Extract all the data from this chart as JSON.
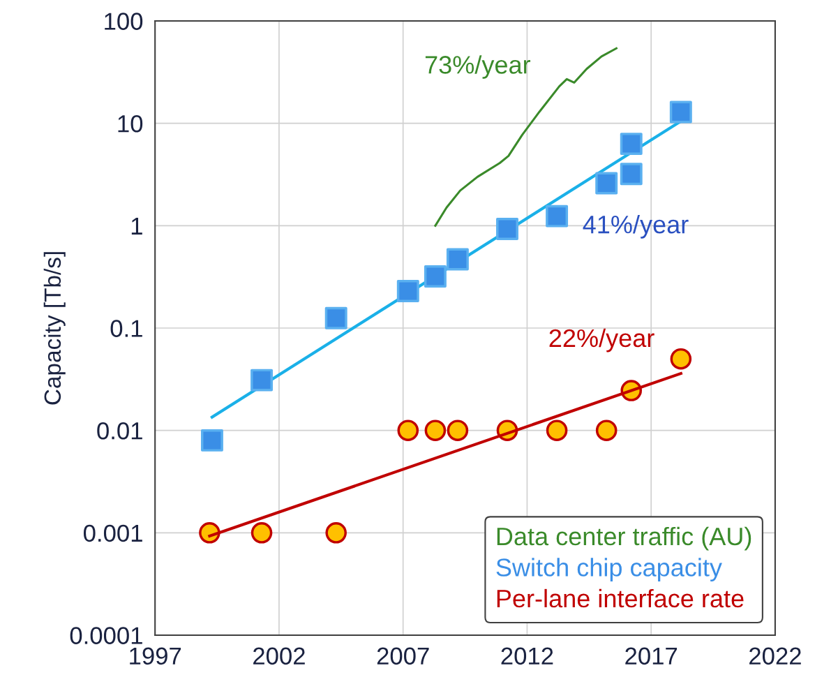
{
  "chart_data": {
    "type": "scatter",
    "ylabel": "Capacity [Tb/s]",
    "log": "y",
    "xlim": [
      1997,
      2022
    ],
    "xticks": [
      1997,
      2002,
      2007,
      2012,
      2017,
      2022
    ],
    "ylim": [
      0.0001,
      100
    ],
    "yticks": [
      0.0001,
      0.001,
      0.01,
      0.1,
      1,
      10,
      100
    ],
    "grid": true,
    "legend": "bottom right",
    "series": [
      {
        "name": "Data center traffic (AU)",
        "type": "line",
        "color": "#3a8a2a",
        "marker": "none",
        "x": [
          2008.3,
          2008.75,
          2009.3,
          2010.0,
          2010.9,
          2011.25,
          2011.8,
          2012.5,
          2013.3,
          2013.6,
          2013.9,
          2014.4,
          2015.0,
          2015.6
        ],
        "values": [
          1.0,
          1.5,
          2.2,
          3.0,
          4.1,
          4.8,
          7.7,
          13,
          23,
          27,
          25,
          34,
          45,
          54
        ]
      },
      {
        "type": "line",
        "color": "#1ab0e8",
        "marker": "none",
        "x": [
          1999.3,
          2018.2
        ],
        "values": [
          0.0135,
          10.5
        ]
      },
      {
        "name": "Switch chip capacity",
        "color": "#3a8ee6",
        "marker": "square",
        "x": [
          1999.3,
          2001.3,
          2004.3,
          2007.2,
          2008.3,
          2009.2,
          2011.2,
          2013.2,
          2015.2,
          2016.2,
          2016.2,
          2018.2
        ],
        "values": [
          0.008,
          0.031,
          0.125,
          0.23,
          0.32,
          0.47,
          0.93,
          1.24,
          2.6,
          6.3,
          3.2,
          12.9
        ]
      },
      {
        "name": "Per-lane interface rate",
        "type": "line",
        "color": "#c00000",
        "marker": "none",
        "x": [
          1999.2,
          2018.2
        ],
        "values": [
          0.00093,
          0.036
        ]
      },
      {
        "color": "#ffc000",
        "marker": "circle",
        "x": [
          1999.2,
          2001.3,
          2004.3,
          2007.2,
          2008.3,
          2009.2,
          2011.2,
          2013.2,
          2015.2,
          2016.2,
          2018.2
        ],
        "values": [
          0.001,
          0.001,
          0.001,
          0.01,
          0.01,
          0.01,
          0.01,
          0.01,
          0.01,
          0.0245,
          0.05
        ]
      }
    ],
    "annotations": [
      "73%/year",
      "41%/year",
      "22%/year"
    ]
  }
}
